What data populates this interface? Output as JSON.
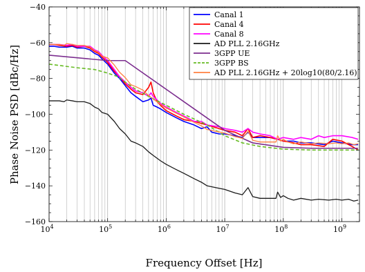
{
  "chart_data": {
    "type": "line",
    "title": "",
    "xlabel": "Frequency Offset [Hz]",
    "ylabel": "Phase Noise PSD [dBc/Hz]",
    "x_scale": "log",
    "xlim": [
      10000,
      2000000000
    ],
    "ylim": [
      -160,
      -40
    ],
    "x_ticks": [
      10000,
      100000,
      1000000,
      10000000,
      100000000,
      1000000000
    ],
    "x_tick_labels": [
      {
        "base": "10",
        "exp": "4"
      },
      {
        "base": "10",
        "exp": "5"
      },
      {
        "base": "10",
        "exp": "6"
      },
      {
        "base": "10",
        "exp": "7"
      },
      {
        "base": "10",
        "exp": "8"
      },
      {
        "base": "10",
        "exp": "9"
      }
    ],
    "y_ticks": [
      -160,
      -140,
      -120,
      -100,
      -80,
      -60,
      -40
    ],
    "grid": "vertical minor and major on log x axis",
    "legend_position": "top-right",
    "series": [
      {
        "name": "Canal 1",
        "color": "#0000ff",
        "dash": "solid",
        "width": 1.6,
        "points": [
          [
            10000,
            -62
          ],
          [
            12000,
            -62
          ],
          [
            15000,
            -62.5
          ],
          [
            20000,
            -62.5
          ],
          [
            25000,
            -62
          ],
          [
            30000,
            -63
          ],
          [
            40000,
            -63
          ],
          [
            50000,
            -64
          ],
          [
            60000,
            -66
          ],
          [
            70000,
            -67
          ],
          [
            80000,
            -69
          ],
          [
            100000,
            -72
          ],
          [
            130000,
            -77
          ],
          [
            160000,
            -80
          ],
          [
            200000,
            -84
          ],
          [
            250000,
            -88
          ],
          [
            300000,
            -90
          ],
          [
            400000,
            -93
          ],
          [
            500000,
            -92
          ],
          [
            550000,
            -91
          ],
          [
            600000,
            -95
          ],
          [
            700000,
            -96
          ],
          [
            800000,
            -97
          ],
          [
            1000000,
            -99
          ],
          [
            1500000,
            -102
          ],
          [
            2000000,
            -104
          ],
          [
            3000000,
            -106
          ],
          [
            4000000,
            -108
          ],
          [
            5000000,
            -107
          ],
          [
            6000000,
            -110
          ],
          [
            8000000,
            -111
          ],
          [
            10000000,
            -111
          ],
          [
            15000000,
            -112
          ],
          [
            20000000,
            -113
          ],
          [
            25000000,
            -110
          ],
          [
            30000000,
            -113
          ],
          [
            40000000,
            -113
          ],
          [
            60000000,
            -113
          ],
          [
            80000000,
            -114
          ],
          [
            100000000,
            -115
          ],
          [
            150000000,
            -115
          ],
          [
            200000000,
            -116
          ],
          [
            300000000,
            -116
          ],
          [
            500000000,
            -117
          ],
          [
            700000000,
            -115
          ],
          [
            1000000000,
            -116
          ],
          [
            1500000000,
            -117
          ],
          [
            1900000000,
            -117
          ]
        ]
      },
      {
        "name": "Canal 4",
        "color": "#ff0000",
        "dash": "solid",
        "width": 1.6,
        "points": [
          [
            10000,
            -61
          ],
          [
            12000,
            -61
          ],
          [
            15000,
            -61.5
          ],
          [
            20000,
            -62
          ],
          [
            25000,
            -61.5
          ],
          [
            30000,
            -62.5
          ],
          [
            40000,
            -62
          ],
          [
            50000,
            -63
          ],
          [
            60000,
            -65
          ],
          [
            70000,
            -66
          ],
          [
            80000,
            -68
          ],
          [
            100000,
            -71
          ],
          [
            130000,
            -76
          ],
          [
            160000,
            -79
          ],
          [
            200000,
            -83
          ],
          [
            250000,
            -86
          ],
          [
            300000,
            -88
          ],
          [
            400000,
            -89
          ],
          [
            500000,
            -85
          ],
          [
            550000,
            -82
          ],
          [
            600000,
            -88
          ],
          [
            700000,
            -93
          ],
          [
            800000,
            -95
          ],
          [
            1000000,
            -98
          ],
          [
            1500000,
            -101
          ],
          [
            2000000,
            -103
          ],
          [
            3000000,
            -104
          ],
          [
            5000000,
            -106
          ],
          [
            8000000,
            -108
          ],
          [
            10000000,
            -109
          ],
          [
            15000000,
            -110
          ],
          [
            20000000,
            -112
          ],
          [
            25000000,
            -108
          ],
          [
            30000000,
            -113
          ],
          [
            40000000,
            -112
          ],
          [
            60000000,
            -113
          ],
          [
            80000000,
            -114
          ],
          [
            100000000,
            -115
          ],
          [
            150000000,
            -116
          ],
          [
            200000000,
            -117
          ],
          [
            300000000,
            -117
          ],
          [
            500000000,
            -118
          ],
          [
            700000000,
            -114
          ],
          [
            1000000000,
            -115
          ],
          [
            1500000000,
            -118
          ],
          [
            1900000000,
            -120
          ]
        ]
      },
      {
        "name": "Canal 8",
        "color": "#ff00ff",
        "dash": "solid",
        "width": 1.6,
        "points": [
          [
            10000,
            -61
          ],
          [
            12000,
            -61
          ],
          [
            15000,
            -61
          ],
          [
            20000,
            -61.5
          ],
          [
            25000,
            -61
          ],
          [
            30000,
            -62
          ],
          [
            40000,
            -62
          ],
          [
            50000,
            -62
          ],
          [
            60000,
            -64
          ],
          [
            70000,
            -65
          ],
          [
            80000,
            -67
          ],
          [
            100000,
            -70
          ],
          [
            130000,
            -75
          ],
          [
            160000,
            -79
          ],
          [
            200000,
            -82
          ],
          [
            250000,
            -85
          ],
          [
            300000,
            -87
          ],
          [
            400000,
            -88
          ],
          [
            500000,
            -90
          ],
          [
            550000,
            -88
          ],
          [
            600000,
            -90
          ],
          [
            700000,
            -92
          ],
          [
            800000,
            -94
          ],
          [
            1000000,
            -96
          ],
          [
            1500000,
            -99
          ],
          [
            2000000,
            -101
          ],
          [
            3000000,
            -104
          ],
          [
            4000000,
            -104
          ],
          [
            5000000,
            -106
          ],
          [
            8000000,
            -107
          ],
          [
            10000000,
            -108
          ],
          [
            15000000,
            -109
          ],
          [
            20000000,
            -110
          ],
          [
            25000000,
            -108
          ],
          [
            30000000,
            -110
          ],
          [
            40000000,
            -111
          ],
          [
            60000000,
            -112
          ],
          [
            80000000,
            -114
          ],
          [
            100000000,
            -113
          ],
          [
            150000000,
            -114
          ],
          [
            200000000,
            -113
          ],
          [
            300000000,
            -114
          ],
          [
            400000000,
            -112
          ],
          [
            500000000,
            -113
          ],
          [
            700000000,
            -112
          ],
          [
            1000000000,
            -112
          ],
          [
            1500000000,
            -113
          ],
          [
            1900000000,
            -114
          ]
        ]
      },
      {
        "name": "AD PLL 2.16GHz",
        "color": "#1a1a1a",
        "dash": "solid",
        "width": 1.3,
        "points": [
          [
            10000,
            -92.5
          ],
          [
            12000,
            -92.5
          ],
          [
            15000,
            -92.5
          ],
          [
            18000,
            -93
          ],
          [
            20000,
            -92
          ],
          [
            25000,
            -92.5
          ],
          [
            30000,
            -93
          ],
          [
            40000,
            -93
          ],
          [
            50000,
            -94
          ],
          [
            60000,
            -96
          ],
          [
            70000,
            -97
          ],
          [
            80000,
            -99
          ],
          [
            100000,
            -100
          ],
          [
            130000,
            -104
          ],
          [
            160000,
            -108
          ],
          [
            200000,
            -111
          ],
          [
            250000,
            -115
          ],
          [
            300000,
            -116
          ],
          [
            400000,
            -118
          ],
          [
            500000,
            -121
          ],
          [
            600000,
            -123
          ],
          [
            800000,
            -126
          ],
          [
            1000000,
            -128
          ],
          [
            1500000,
            -131
          ],
          [
            2000000,
            -133
          ],
          [
            3000000,
            -136
          ],
          [
            4000000,
            -138
          ],
          [
            5000000,
            -140
          ],
          [
            7000000,
            -141
          ],
          [
            10000000,
            -142
          ],
          [
            15000000,
            -144
          ],
          [
            20000000,
            -145
          ],
          [
            25000000,
            -141
          ],
          [
            30000000,
            -146
          ],
          [
            40000000,
            -147
          ],
          [
            50000000,
            -147
          ],
          [
            60000000,
            -147
          ],
          [
            75000000,
            -147
          ],
          [
            80000000,
            -143.5
          ],
          [
            90000000,
            -146.5
          ],
          [
            100000000,
            -145.5
          ],
          [
            120000000,
            -147
          ],
          [
            150000000,
            -148
          ],
          [
            200000000,
            -147
          ],
          [
            300000000,
            -148
          ],
          [
            400000000,
            -147.5
          ],
          [
            600000000,
            -148
          ],
          [
            800000000,
            -147.5
          ],
          [
            1000000000,
            -148
          ],
          [
            1300000000,
            -147.5
          ],
          [
            1600000000,
            -148.5
          ],
          [
            1900000000,
            -148
          ]
        ]
      },
      {
        "name": "3GPP UE",
        "color": "#7b2d8e",
        "dash": "solid",
        "width": 1.6,
        "points": [
          [
            10000,
            -67
          ],
          [
            100000,
            -70
          ],
          [
            200000,
            -70
          ],
          [
            10000000,
            -109
          ],
          [
            30000000,
            -116
          ],
          [
            100000000,
            -118.5
          ],
          [
            300000000,
            -119
          ],
          [
            1900000000,
            -119
          ]
        ]
      },
      {
        "name": "3GPP BS",
        "color": "#66bb22",
        "dash": "dashed",
        "width": 1.6,
        "points": [
          [
            10000,
            -72
          ],
          [
            30000,
            -74
          ],
          [
            60000,
            -75
          ],
          [
            100000,
            -77
          ],
          [
            150000,
            -79
          ],
          [
            200000,
            -82
          ],
          [
            300000,
            -86
          ],
          [
            500000,
            -90
          ],
          [
            1000000,
            -95
          ],
          [
            2000000,
            -100
          ],
          [
            5000000,
            -106
          ],
          [
            10000000,
            -112
          ],
          [
            20000000,
            -116
          ],
          [
            40000000,
            -118
          ],
          [
            100000000,
            -119.5
          ],
          [
            300000000,
            -120
          ],
          [
            1900000000,
            -120
          ]
        ]
      },
      {
        "name": "AD PLL 2.16GHz + 20log10(80/2.16)",
        "color": "#ff8040",
        "dash": "solid",
        "width": 1.3,
        "points": [
          [
            10000,
            -61
          ],
          [
            12000,
            -61
          ],
          [
            15000,
            -61
          ],
          [
            18000,
            -61.5
          ],
          [
            20000,
            -60.5
          ],
          [
            25000,
            -61
          ],
          [
            30000,
            -61.5
          ],
          [
            40000,
            -61.5
          ],
          [
            50000,
            -62.5
          ],
          [
            60000,
            -64.5
          ],
          [
            70000,
            -65.5
          ],
          [
            80000,
            -67.5
          ],
          [
            100000,
            -68.5
          ],
          [
            130000,
            -72.5
          ],
          [
            160000,
            -76.5
          ],
          [
            200000,
            -79.5
          ],
          [
            250000,
            -83.5
          ],
          [
            300000,
            -84.5
          ],
          [
            400000,
            -86.5
          ],
          [
            500000,
            -89.5
          ],
          [
            600000,
            -91.5
          ],
          [
            800000,
            -94.5
          ],
          [
            1000000,
            -96.5
          ],
          [
            1500000,
            -99.5
          ],
          [
            2000000,
            -101.5
          ],
          [
            3000000,
            -104.5
          ],
          [
            4000000,
            -106.5
          ],
          [
            5000000,
            -108.5
          ],
          [
            7000000,
            -109.5
          ],
          [
            10000000,
            -110.5
          ],
          [
            15000000,
            -112.5
          ],
          [
            20000000,
            -113.5
          ],
          [
            25000000,
            -109.5
          ],
          [
            30000000,
            -114.5
          ],
          [
            40000000,
            -115.5
          ],
          [
            50000000,
            -115.5
          ],
          [
            60000000,
            -115.5
          ],
          [
            75000000,
            -115.5
          ],
          [
            80000000,
            -112
          ],
          [
            90000000,
            -115
          ],
          [
            100000000,
            -114
          ],
          [
            120000000,
            -115.5
          ],
          [
            150000000,
            -116.5
          ],
          [
            200000000,
            -115.5
          ],
          [
            300000000,
            -116.5
          ],
          [
            400000000,
            -116
          ],
          [
            600000000,
            -116.5
          ],
          [
            800000000,
            -116
          ],
          [
            1000000000,
            -116.5
          ],
          [
            1300000000,
            -116
          ],
          [
            1600000000,
            -117
          ],
          [
            1900000000,
            -116.5
          ]
        ]
      }
    ]
  }
}
